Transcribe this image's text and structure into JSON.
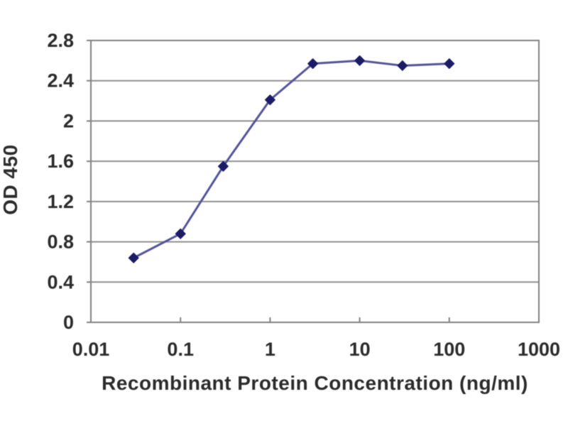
{
  "chart_data": {
    "type": "line",
    "title": "",
    "xlabel": "Recombinant Protein Concentration (ng/ml)",
    "ylabel": "OD 450",
    "x_scale": "log",
    "x": [
      0.03,
      0.1,
      0.3,
      1,
      3,
      10,
      30,
      100
    ],
    "series": [
      {
        "name": "OD 450",
        "values": [
          0.64,
          0.88,
          1.55,
          2.21,
          2.57,
          2.6,
          2.55,
          2.57
        ]
      }
    ],
    "x_tick_labels": [
      "0.01",
      "0.1",
      "1",
      "10",
      "100",
      "1000"
    ],
    "x_tick_values": [
      0.01,
      0.1,
      1,
      10,
      100,
      1000
    ],
    "y_tick_labels": [
      "0",
      "0.4",
      "0.8",
      "1.2",
      "1.6",
      "2",
      "2.4",
      "2.8"
    ],
    "y_tick_values": [
      0,
      0.4,
      0.8,
      1.2,
      1.6,
      2,
      2.4,
      2.8
    ],
    "xlim": [
      0.01,
      1000
    ],
    "ylim": [
      0,
      2.8
    ],
    "grid": "horizontal",
    "legend": "none",
    "marker": "diamond",
    "colors": {
      "line": "#54549a",
      "marker": "#1c1c66",
      "grid": "#8f8f8f",
      "border": "#818181",
      "text": "#2b2b2b",
      "background": "#ffffff"
    }
  }
}
